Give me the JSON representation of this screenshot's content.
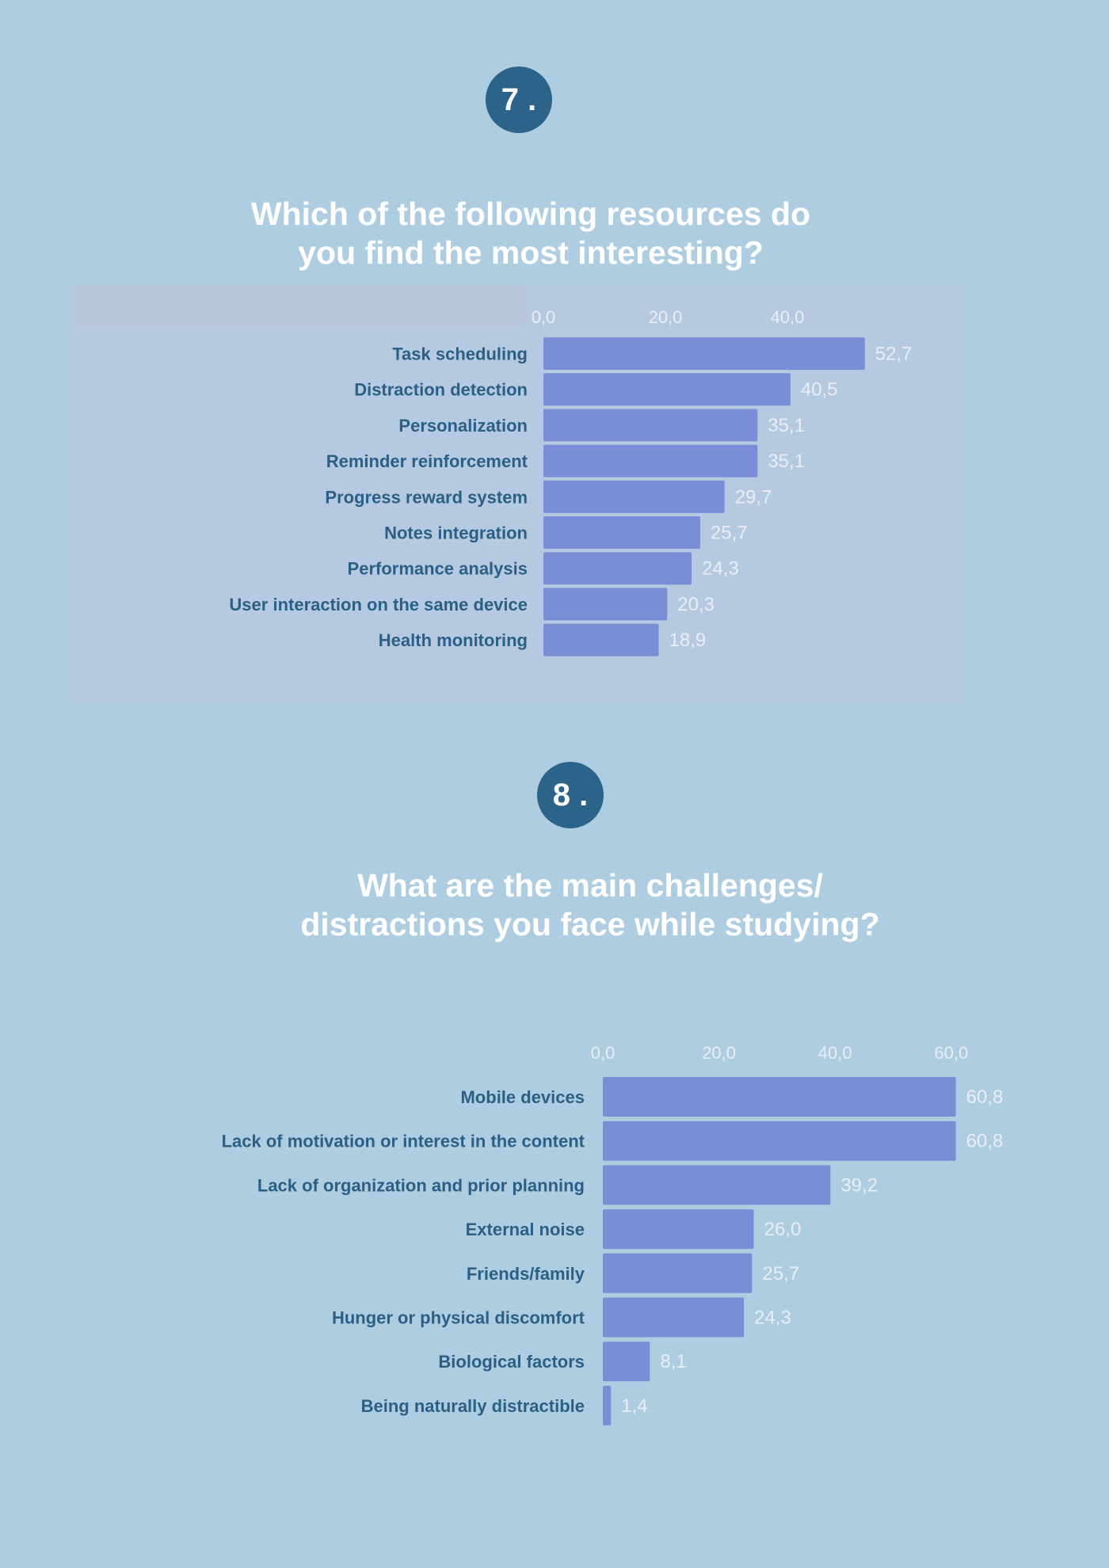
{
  "sections": [
    {
      "number": "7 .",
      "title_lines": [
        "Which of the following resources do",
        "you find the most interesting?"
      ]
    },
    {
      "number": "8 .",
      "title_lines": [
        "What are the main challenges/",
        "distractions you face while studying?"
      ]
    }
  ],
  "colors": {
    "background": "#aecde1",
    "badge": "#2c6389",
    "bar": "#7a8ed8",
    "category_text": "#2b5f86",
    "value_text": "#e9eef5"
  },
  "chart_data": [
    {
      "type": "bar",
      "orientation": "horizontal",
      "categories": [
        "Task scheduling",
        "Distraction detection",
        "Personalization",
        "Reminder reinforcement",
        "Progress reward system",
        "Notes integration",
        "Performance analysis",
        "User interaction on the same device",
        "Health monitoring"
      ],
      "values": [
        52.7,
        40.5,
        35.1,
        35.1,
        29.7,
        25.7,
        24.3,
        20.3,
        18.9
      ],
      "value_labels": [
        "52,7",
        "40,5",
        "35,1",
        "35,1",
        "29,7",
        "25,7",
        "24,3",
        "20,3",
        "18,9"
      ],
      "ticks": [
        0,
        20,
        40
      ],
      "tick_labels": [
        "0,0",
        "20,0",
        "40,0"
      ],
      "xlim": [
        0,
        60
      ],
      "grid": false,
      "legend": "none"
    },
    {
      "type": "bar",
      "orientation": "horizontal",
      "categories": [
        "Mobile devices",
        "Lack of motivation or interest in the content",
        "Lack of organization and prior planning",
        "External noise",
        "Friends/family",
        "Hunger or physical discomfort",
        "Biological factors",
        "Being naturally distractible"
      ],
      "values": [
        60.8,
        60.8,
        39.2,
        26.0,
        25.7,
        24.3,
        8.1,
        1.4
      ],
      "value_labels": [
        "60,8",
        "60,8",
        "39,2",
        "26,0",
        "25,7",
        "24,3",
        "8,1",
        "1,4"
      ],
      "ticks": [
        0,
        20,
        40,
        60
      ],
      "tick_labels": [
        "0,0",
        "20,0",
        "40,0",
        "60,0"
      ],
      "xlim": [
        0,
        60
      ],
      "grid": false,
      "legend": "none"
    }
  ]
}
